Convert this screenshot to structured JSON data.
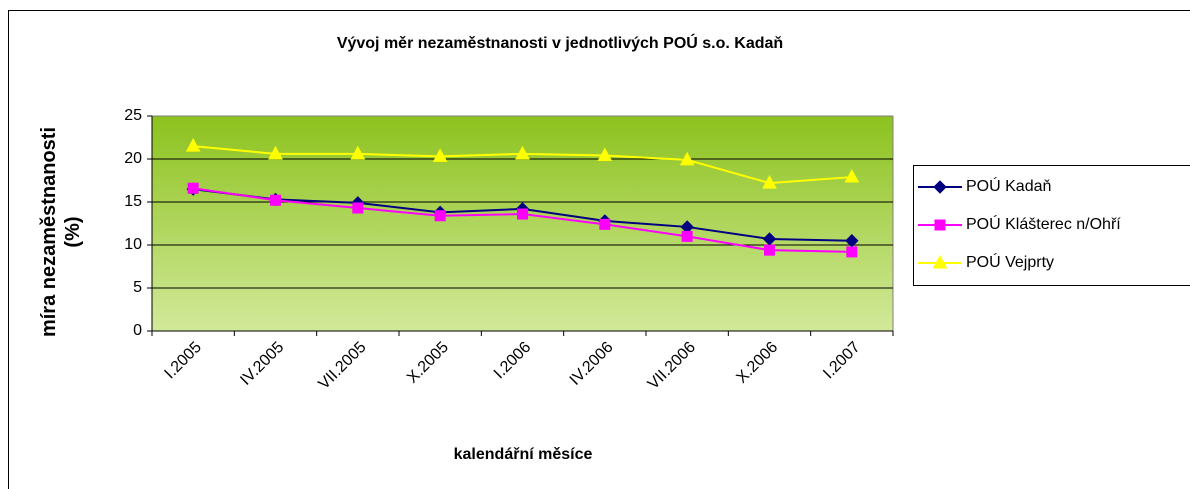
{
  "chart_data": {
    "type": "line",
    "title": "Vývoj měr nezaměstnanosti v jednotlivých POÚ s.o. Kadaň",
    "y_label": "míra nezaměstnanosti (%)",
    "x_label": "kalendářní měsíce",
    "categories": [
      "I.2005",
      "IV.2005",
      "VII.2005",
      "X.2005",
      "I.2006",
      "IV.2006",
      "VII.2006",
      "X.2006",
      "I.2007"
    ],
    "series": [
      {
        "name": "POÚ Kadaň",
        "color": "#000080",
        "marker": "diamond",
        "values": [
          16.5,
          15.3,
          14.9,
          13.8,
          14.2,
          12.8,
          12.1,
          10.7,
          10.5
        ]
      },
      {
        "name": "POÚ Klášterec n/Ohří",
        "color": "#ff00ff",
        "marker": "square",
        "values": [
          16.6,
          15.2,
          14.3,
          13.4,
          13.6,
          12.4,
          11.0,
          9.4,
          9.2
        ]
      },
      {
        "name": "POÚ Vejprty",
        "color": "#ffff00",
        "marker": "triangle",
        "values": [
          21.5,
          20.6,
          20.6,
          20.3,
          20.6,
          20.4,
          19.9,
          17.2,
          17.9
        ]
      }
    ],
    "ylim": [
      0,
      25
    ],
    "yticks": [
      0,
      5,
      10,
      15,
      20,
      25
    ],
    "grid": true,
    "legend": "right"
  }
}
